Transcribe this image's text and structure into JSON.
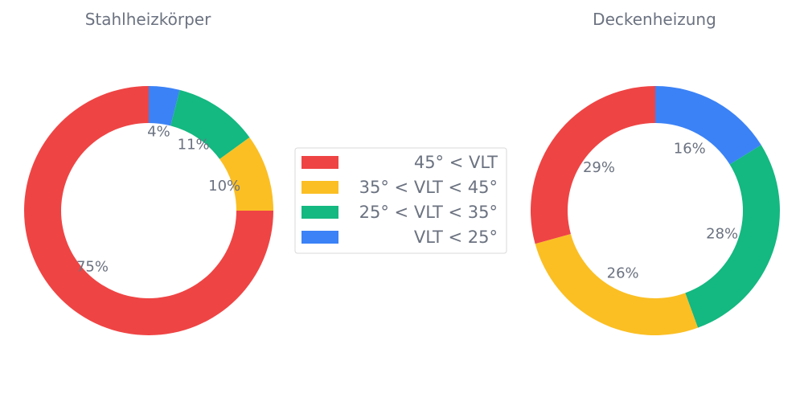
{
  "chart_data": [
    {
      "type": "pie",
      "variant": "donut",
      "title": "Stahlheizkörper",
      "categories": [
        "45° < VLT",
        "35° < VLT < 45°",
        "25° < VLT < 35°",
        "VLT < 25°"
      ],
      "values": [
        75,
        10,
        11,
        4
      ],
      "labels": [
        "75%",
        "10%",
        "11%",
        "4%"
      ]
    },
    {
      "type": "pie",
      "variant": "donut",
      "title": "Deckenheizung",
      "categories": [
        "45° < VLT",
        "35° < VLT < 45°",
        "25° < VLT < 35°",
        "VLT < 25°"
      ],
      "values": [
        29,
        26,
        28,
        16
      ],
      "labels": [
        "29%",
        "26%",
        "28%",
        "16%"
      ]
    }
  ],
  "legend": {
    "placement": "center",
    "entries": [
      {
        "label": "45° < VLT",
        "color": "#ef4444"
      },
      {
        "label": "35° < VLT < 45°",
        "color": "#fbbf24"
      },
      {
        "label": "25° < VLT < 35°",
        "color": "#14b881"
      },
      {
        "label": "VLT < 25°",
        "color": "#3b82f6"
      }
    ]
  },
  "colors": [
    "#ef4444",
    "#fbbf24",
    "#14b881",
    "#3b82f6"
  ]
}
